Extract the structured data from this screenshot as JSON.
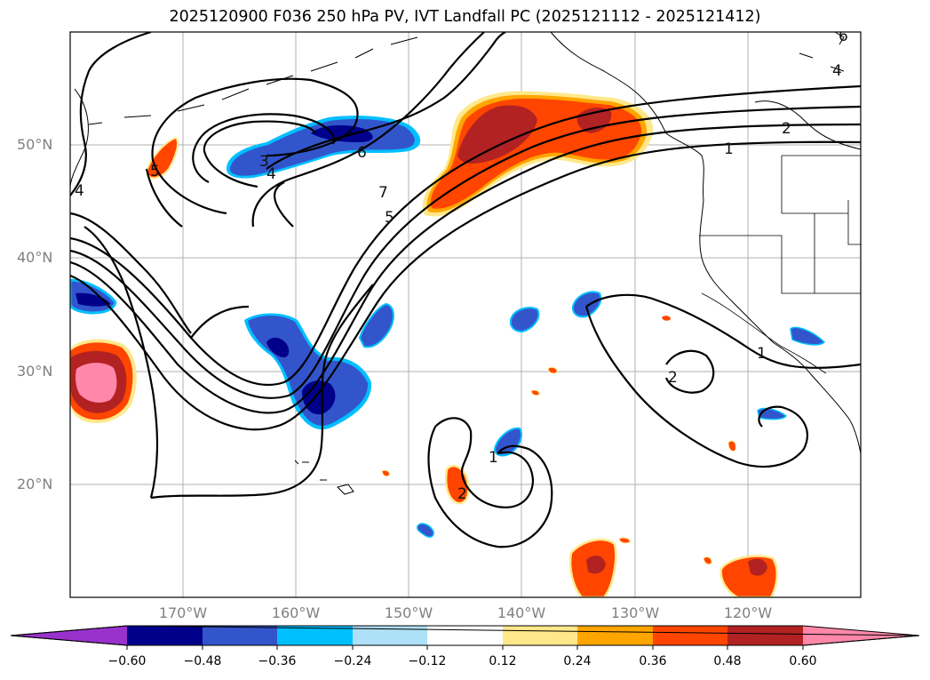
{
  "title": "2025120900 F036 250 hPa PV, IVT Landfall PC (2025121112 - 2025121412)",
  "map": {
    "projection": "PlateCarree",
    "lon_range": [
      -180,
      -110
    ],
    "lat_range": [
      10,
      60
    ],
    "lat_labels": [
      "50°N",
      "40°N",
      "30°N",
      "20°N"
    ],
    "lon_labels": [
      "170°W",
      "160°W",
      "150°W",
      "140°W",
      "130°W",
      "120°W"
    ]
  },
  "colorbar": {
    "ticks": [
      "−0.60",
      "−0.48",
      "−0.36",
      "−0.24",
      "−0.12",
      "0.12",
      "0.24",
      "0.36",
      "0.48",
      "0.60"
    ],
    "colors": [
      "#9932cc",
      "#00008b",
      "#3355cc",
      "#00bfff",
      "#aee0f7",
      "#ffffff",
      "#ffe88a",
      "#ffa500",
      "#ff4500",
      "#b22222",
      "#ff88aa"
    ],
    "extend": "both"
  },
  "contour_labels": [
    "6",
    "4",
    "2",
    "1",
    "3",
    "4",
    "6",
    "7",
    "5",
    "4",
    "5",
    "1",
    "2",
    "1",
    "2"
  ]
}
